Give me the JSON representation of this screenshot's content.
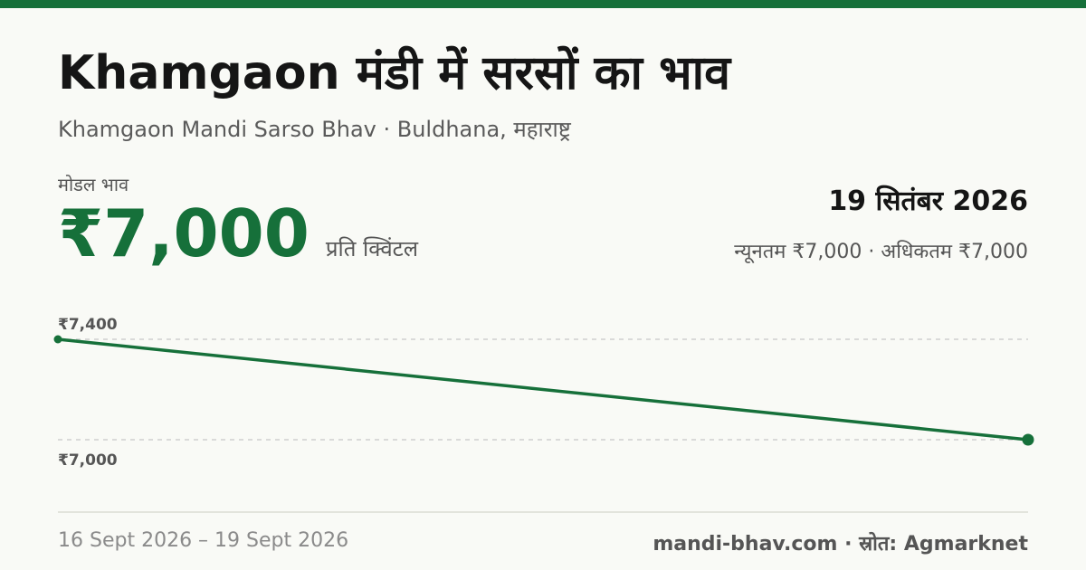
{
  "header": {
    "title": "Khamgaon मंडी में सरसों का भाव",
    "subtitle": "Khamgaon Mandi Sarso Bhav · Buldhana, महाराष्ट्र"
  },
  "summary": {
    "modal_label": "मोडल भाव",
    "modal_price": "₹7,000",
    "unit": "प्रति क्विंटल",
    "date": "19 सितंबर 2026",
    "min_max": "न्यूनतम ₹7,000 · अधिकतम ₹7,000"
  },
  "chart_data": {
    "type": "line",
    "x": [
      "16 Sept 2026",
      "19 Sept 2026"
    ],
    "series": [
      {
        "values": [
          7400,
          7000
        ]
      }
    ],
    "ylim": [
      7000,
      7400
    ],
    "ytick_labels": [
      "₹7,400",
      "₹7,000"
    ],
    "grid": true,
    "color": "#16703a"
  },
  "footer": {
    "date_range": "16 Sept 2026 – 19 Sept 2026",
    "source": "mandi-bhav.com · स्रोत: Agmarknet"
  }
}
